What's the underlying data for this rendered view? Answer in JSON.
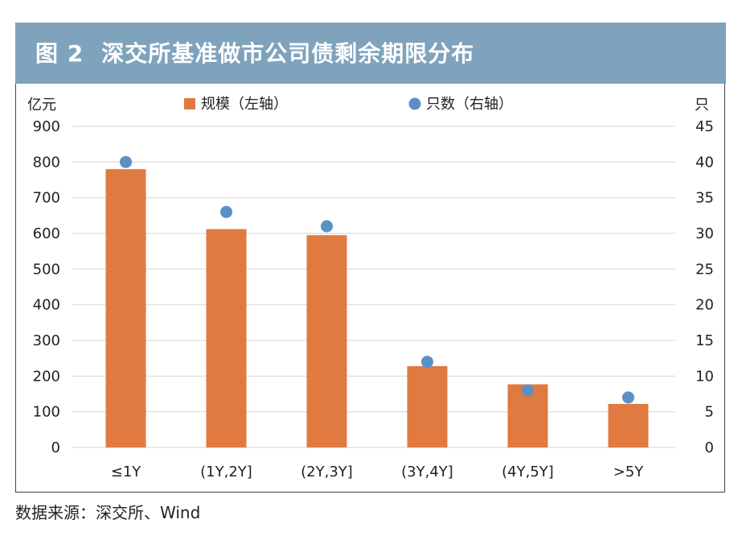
{
  "figure": {
    "number": "图 2",
    "title": "深交所基准做市公司债剩余期限分布"
  },
  "source": "数据来源：深交所、Wind",
  "colors": {
    "bar": "#e07a40",
    "dot": "#5b8fc7",
    "header": "#7fa3bd",
    "grid": "#d9d9d9"
  },
  "chart_data": {
    "type": "bar+scatter",
    "categories": [
      "≤1Y",
      "(1Y,2Y]",
      "(2Y,3Y]",
      "(3Y,4Y]",
      "(4Y,5Y]",
      ">5Y"
    ],
    "series": [
      {
        "name": "规模（左轴）",
        "type": "bar",
        "axis": "left",
        "values": [
          780,
          612,
          595,
          228,
          177,
          122
        ]
      },
      {
        "name": "只数（右轴）",
        "type": "scatter",
        "axis": "right",
        "values": [
          40,
          33,
          31,
          12,
          8,
          7
        ]
      }
    ],
    "y_left": {
      "unit": "亿元",
      "min": 0,
      "max": 900,
      "ticks": [
        0,
        100,
        200,
        300,
        400,
        500,
        600,
        700,
        800,
        900
      ]
    },
    "y_right": {
      "unit": "只",
      "min": 0,
      "max": 45,
      "ticks": [
        0,
        5,
        10,
        15,
        20,
        25,
        30,
        35,
        40,
        45
      ]
    },
    "grid": true,
    "legend_position": "top"
  }
}
